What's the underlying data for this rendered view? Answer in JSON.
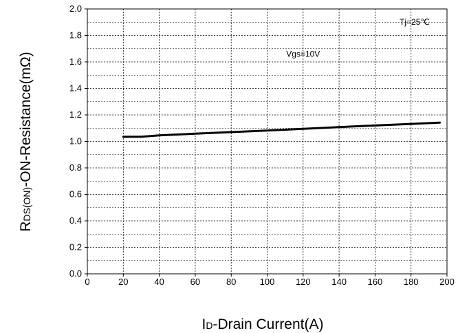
{
  "chart_data": {
    "type": "line",
    "xlabel_parts": {
      "main": "I",
      "sub": "D",
      "rest": "-Drain Current(A)"
    },
    "ylabel_parts": {
      "main": "R",
      "sub": "DS(ON)",
      "rest": "-ON-Resistance(mΩ)"
    },
    "xlim": [
      0,
      200
    ],
    "ylim": [
      0.0,
      2.0
    ],
    "x_ticks": [
      0,
      20,
      40,
      60,
      80,
      100,
      120,
      140,
      160,
      180,
      200
    ],
    "x_tick_labels": [
      "0",
      "20",
      "40",
      "60",
      "80",
      "100",
      "120",
      "140",
      "160",
      "180",
      "200"
    ],
    "y_ticks": [
      0.0,
      0.2,
      0.4,
      0.6,
      0.8,
      1.0,
      1.2,
      1.4,
      1.6,
      1.8,
      2.0
    ],
    "y_tick_labels": [
      "0.0",
      "0.2",
      "0.4",
      "0.6",
      "0.8",
      "1.0",
      "1.2",
      "1.4",
      "1.6",
      "1.8",
      "2.0"
    ],
    "grid": true,
    "grid_style": "dotted",
    "series": [
      {
        "x": [
          20,
          30,
          40,
          60,
          80,
          100,
          120,
          140,
          160,
          180,
          196
        ],
        "y": [
          1.035,
          1.035,
          1.045,
          1.058,
          1.07,
          1.082,
          1.095,
          1.108,
          1.12,
          1.132,
          1.142
        ],
        "color": "#000000"
      }
    ],
    "annotations": [
      {
        "text": "Tj=25℃",
        "x": 182,
        "y": 1.88
      },
      {
        "text": "Vgs=10V",
        "x": 120,
        "y": 1.64
      }
    ]
  }
}
